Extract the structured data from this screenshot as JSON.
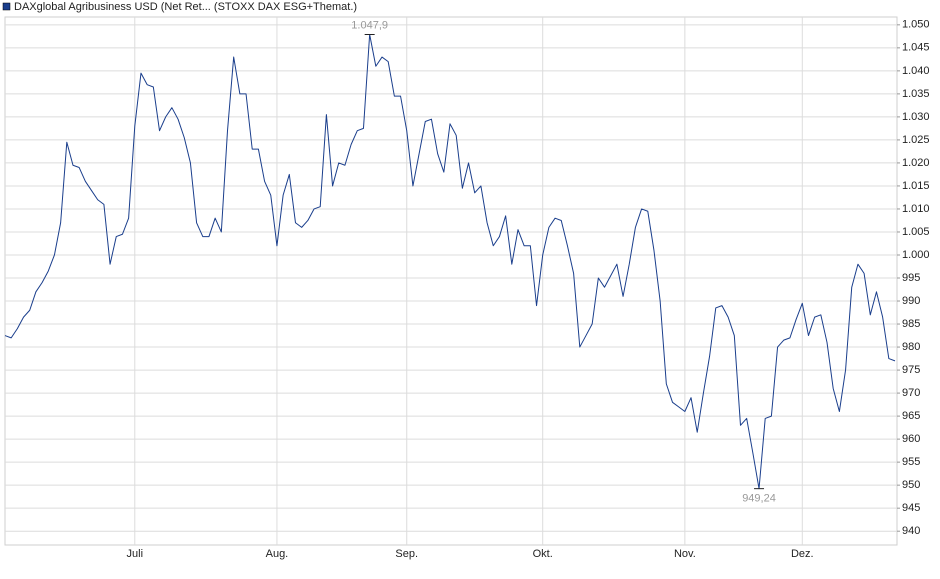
{
  "chart_data": {
    "type": "line",
    "categories": [
      null,
      null,
      null,
      null,
      null,
      null,
      null,
      null,
      null,
      null,
      null,
      null,
      null,
      null,
      null,
      null,
      null,
      null,
      null,
      null,
      null,
      "Juli",
      null,
      null,
      null,
      null,
      null,
      null,
      null,
      null,
      null,
      null,
      null,
      null,
      null,
      null,
      null,
      null,
      null,
      null,
      null,
      null,
      null,
      null,
      "Aug.",
      null,
      null,
      null,
      null,
      null,
      null,
      null,
      null,
      null,
      null,
      null,
      null,
      null,
      null,
      null,
      null,
      null,
      null,
      null,
      null,
      "Sep.",
      null,
      null,
      null,
      null,
      null,
      null,
      null,
      null,
      null,
      null,
      null,
      null,
      null,
      null,
      null,
      null,
      null,
      null,
      null,
      null,
      null,
      "Okt.",
      null,
      null,
      null,
      null,
      null,
      null,
      null,
      null,
      null,
      null,
      null,
      null,
      null,
      null,
      null,
      null,
      null,
      null,
      null,
      null,
      null,
      null,
      "Nov.",
      null,
      null,
      null,
      null,
      null,
      null,
      null,
      null,
      null,
      null,
      null,
      null,
      null,
      null,
      null,
      null,
      null,
      null,
      "Dez.",
      null,
      null,
      null,
      null,
      null,
      null,
      null,
      null,
      null,
      null,
      null,
      null,
      null,
      null,
      null
    ],
    "series": [
      {
        "name": "DAXglobal Agribusiness USD (Net Ret... (STOXX DAX ESG+Themat.)",
        "color": "#1a3e8c",
        "values": [
          982.5,
          982,
          984,
          986.5,
          988,
          992,
          994,
          996.5,
          1000,
          1007,
          1024.5,
          1019.5,
          1019,
          1016,
          1014,
          1012,
          1011,
          998,
          1004,
          1004.5,
          1008,
          1028,
          1039.5,
          1037,
          1036.5,
          1027,
          1030,
          1032,
          1029.5,
          1025.5,
          1020,
          1007,
          1004,
          1004,
          1008,
          1005,
          1027,
          1043,
          1035,
          1035,
          1023,
          1023,
          1016,
          1013,
          1002,
          1013,
          1017.5,
          1007,
          1006,
          1007.5,
          1010,
          1010.5,
          1030.5,
          1015,
          1020,
          1019.5,
          1024,
          1027,
          1027.5,
          1047.9,
          1041,
          1043,
          1042,
          1034.5,
          1034.5,
          1027,
          1015,
          1022,
          1029,
          1029.5,
          1022,
          1018,
          1028.5,
          1026,
          1014.5,
          1020,
          1013.5,
          1015,
          1007,
          1002,
          1004,
          1008.5,
          998,
          1005.5,
          1002,
          1002,
          989,
          1000,
          1006,
          1008,
          1007.5,
          1002,
          996,
          980,
          982.5,
          985,
          995,
          993,
          995.5,
          998,
          991,
          998,
          1006,
          1010,
          1009.5,
          1001,
          990,
          972,
          968,
          967,
          966,
          969,
          961.5,
          970,
          978,
          988.5,
          989,
          986.5,
          982.5,
          963,
          964.5,
          957,
          949.24,
          964.5,
          965,
          980,
          981.5,
          982,
          986,
          989.5,
          982.5,
          986.5,
          987,
          981,
          971,
          966,
          975,
          993,
          998,
          996,
          987,
          992,
          986.5,
          977.5,
          977
        ]
      }
    ],
    "annotations": [
      {
        "label": "1.047,9",
        "value": 1047.9,
        "position": "above"
      },
      {
        "label": "949,24",
        "value": 949.24,
        "position": "below"
      }
    ],
    "ylim": [
      937,
      1051.7
    ],
    "yticks": [
      940,
      945,
      950,
      955,
      960,
      965,
      970,
      975,
      980,
      985,
      990,
      995,
      {
        "value": 1000,
        "label": "1.000"
      },
      {
        "value": 1005,
        "label": "1.005"
      },
      {
        "value": 1010,
        "label": "1.010"
      },
      {
        "value": 1015,
        "label": "1.015"
      },
      {
        "value": 1020,
        "label": "1.020"
      },
      {
        "value": 1025,
        "label": "1.025"
      },
      {
        "value": 1030,
        "label": "1.030"
      },
      {
        "value": 1035,
        "label": "1.035"
      },
      {
        "value": 1040,
        "label": "1.040"
      },
      {
        "value": 1045,
        "label": "1.045"
      },
      {
        "value": 1050,
        "label": "1.050"
      }
    ],
    "grid": true
  }
}
